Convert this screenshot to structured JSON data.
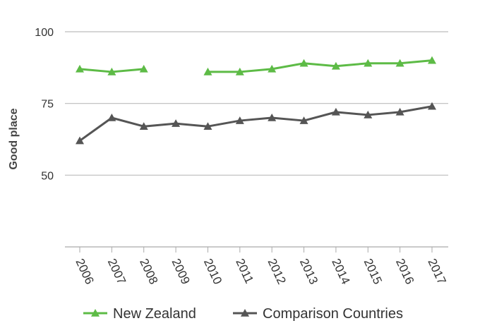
{
  "chart_data": {
    "type": "line",
    "title": "",
    "xlabel": "",
    "ylabel": "Good place",
    "ylim": [
      25,
      100
    ],
    "yticks": [
      50,
      75,
      100
    ],
    "grid": true,
    "legend_position": "bottom",
    "x": [
      "2006",
      "2007",
      "2008",
      "2009",
      "2010",
      "2011",
      "2012",
      "2013",
      "2014",
      "2015",
      "2016",
      "2017"
    ],
    "series": [
      {
        "name": "New Zealand",
        "color": "#5dbb46",
        "marker": "triangle",
        "values": [
          87,
          86,
          87,
          null,
          86,
          86,
          87,
          89,
          88,
          89,
          89,
          90
        ]
      },
      {
        "name": "Comparison Countries",
        "color": "#555555",
        "marker": "triangle",
        "values": [
          62,
          70,
          67,
          68,
          67,
          69,
          70,
          69,
          72,
          71,
          72,
          74
        ]
      }
    ]
  }
}
